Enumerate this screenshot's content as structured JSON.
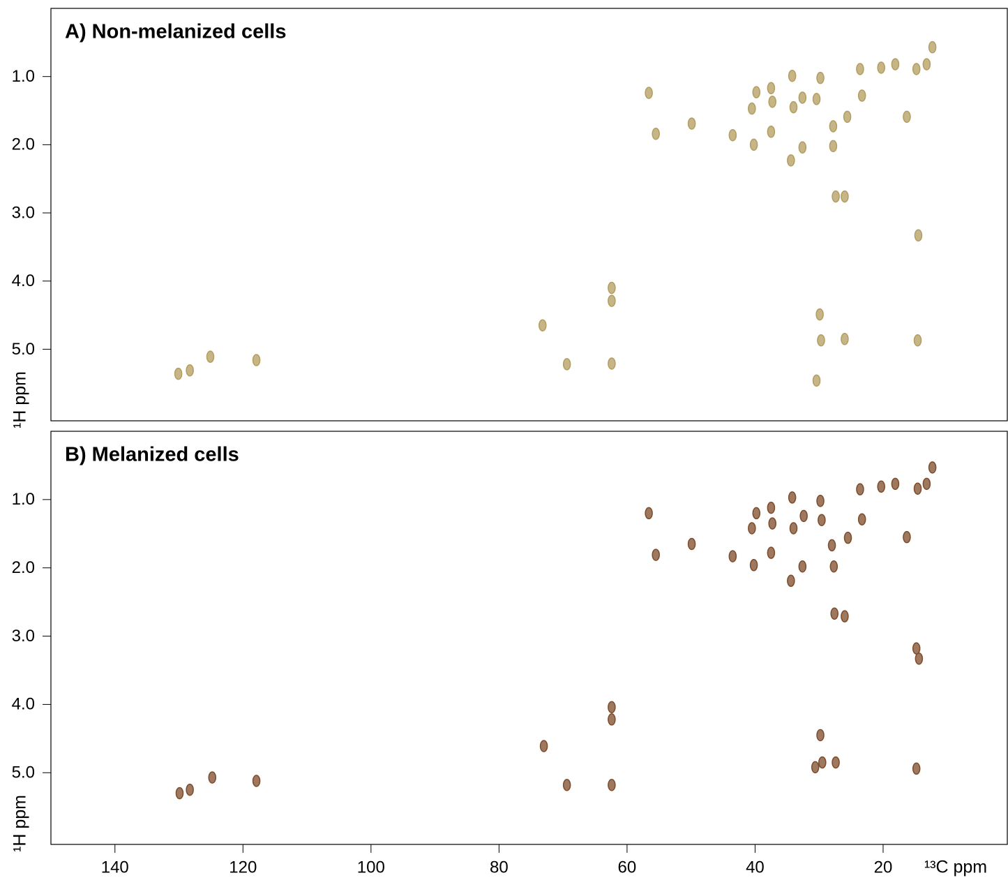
{
  "chart_data": [
    {
      "type": "scatter",
      "title": "A) Non-melanized cells",
      "ylabel": "¹H ppm",
      "color": "#b39d5f",
      "xlim": [
        150,
        0.6
      ],
      "ylim": [
        0,
        6.05
      ],
      "yticks": [
        {
          "value": 1,
          "label": "1.0"
        },
        {
          "value": 2,
          "label": "2.0"
        },
        {
          "value": 3,
          "label": "3.0"
        },
        {
          "value": 4,
          "label": "4.0"
        },
        {
          "value": 5,
          "label": "5.0"
        }
      ],
      "x": [
        130.1,
        128.3,
        125.1,
        117.9,
        73.2,
        69.4,
        62.4,
        62.4,
        62.4,
        56.6,
        55.5,
        49.9,
        43.5,
        39.8,
        40.2,
        40.5,
        34.4,
        34.2,
        34.0,
        32.6,
        30.4,
        30.4,
        29.8,
        29.9,
        29.7,
        27.8,
        27.8,
        27.4,
        26.0,
        25.6,
        23.3,
        23.6,
        20.3,
        18.1,
        16.3,
        14.8,
        13.2,
        12.3,
        14.5,
        14.6,
        32.6,
        37.5,
        37.3,
        37.5,
        26.0
      ],
      "values": [
        5.36,
        5.31,
        5.11,
        5.16,
        4.65,
        5.22,
        4.1,
        4.29,
        5.21,
        1.24,
        1.84,
        1.69,
        1.86,
        1.23,
        2.0,
        1.47,
        2.23,
        0.99,
        1.45,
        1.31,
        1.33,
        5.46,
        1.02,
        4.49,
        4.87,
        2.02,
        1.73,
        2.76,
        2.76,
        1.59,
        1.28,
        0.89,
        0.87,
        0.82,
        1.59,
        0.89,
        0.82,
        0.57,
        3.33,
        4.87,
        2.04,
        1.17,
        1.37,
        1.81,
        4.85
      ]
    },
    {
      "type": "scatter",
      "title": "B) Melanized cells",
      "ylabel": "¹H ppm",
      "xlabel": "¹³C ppm",
      "color": "#7d4c2b",
      "xlim": [
        150,
        0.6
      ],
      "ylim": [
        0,
        6.05
      ],
      "xticks": [
        140,
        120,
        100,
        80,
        60,
        40,
        20
      ],
      "yticks": [
        {
          "value": 1,
          "label": "1.0"
        },
        {
          "value": 2,
          "label": "2.0"
        },
        {
          "value": 3,
          "label": "3.0"
        },
        {
          "value": 4,
          "label": "4.0"
        },
        {
          "value": 5,
          "label": "5.0"
        }
      ],
      "x": [
        129.9,
        128.3,
        124.8,
        117.9,
        73.0,
        69.4,
        62.4,
        62.4,
        62.4,
        56.6,
        55.5,
        49.9,
        43.5,
        39.8,
        40.2,
        40.5,
        34.4,
        34.2,
        34.0,
        32.4,
        29.6,
        29.8,
        29.8,
        29.5,
        30.6,
        27.7,
        28.0,
        27.6,
        26.0,
        25.5,
        23.3,
        23.6,
        20.3,
        18.1,
        16.3,
        14.6,
        13.2,
        12.3,
        14.8,
        14.4,
        14.8,
        27.4,
        32.6,
        37.5,
        37.3,
        37.5
      ],
      "values": [
        5.3,
        5.25,
        5.07,
        5.12,
        4.61,
        5.18,
        4.04,
        4.22,
        5.18,
        1.2,
        1.81,
        1.65,
        1.83,
        1.2,
        1.96,
        1.42,
        2.19,
        0.97,
        1.42,
        1.24,
        1.3,
        1.02,
        4.45,
        4.85,
        4.92,
        1.98,
        1.67,
        2.67,
        2.71,
        1.56,
        1.29,
        0.85,
        0.81,
        0.77,
        1.55,
        0.84,
        0.77,
        0.53,
        3.18,
        3.33,
        4.94,
        4.85,
        1.98,
        1.12,
        1.35,
        1.78
      ]
    }
  ]
}
